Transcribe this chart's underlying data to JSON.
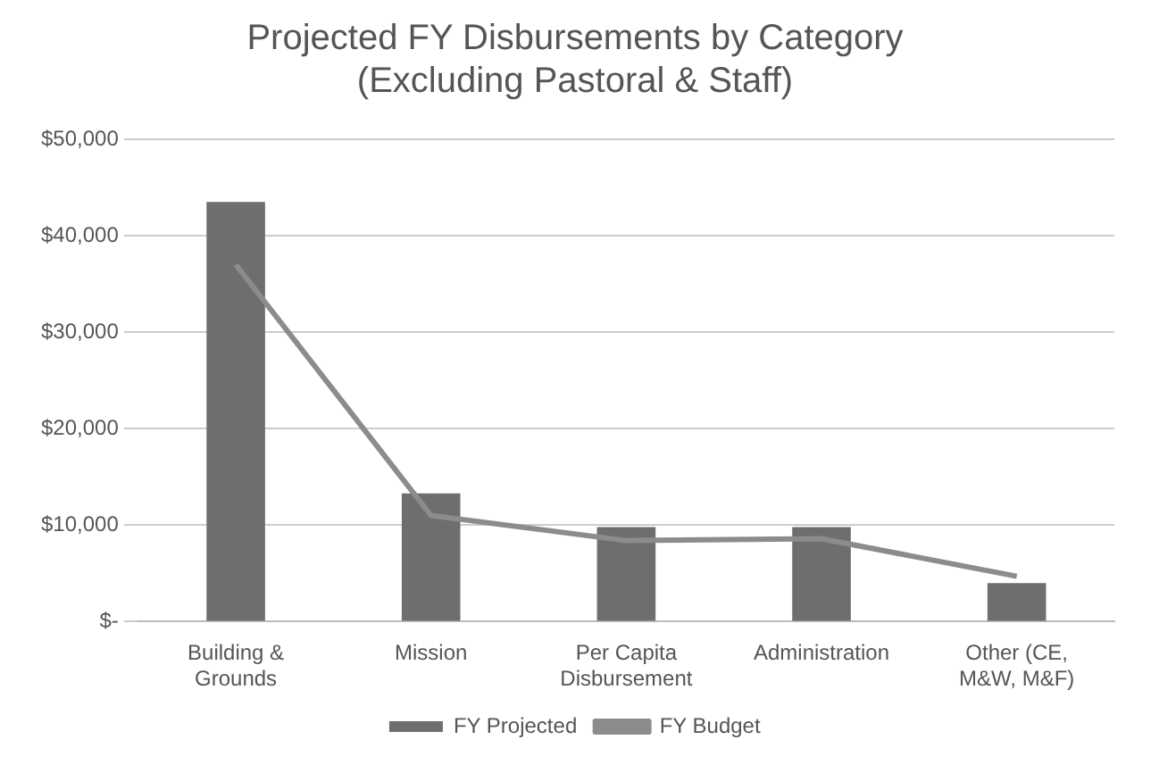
{
  "chart_data": {
    "type": "bar",
    "title": [
      "Projected FY Disbursements by Category",
      "(Excluding Pastoral & Staff)"
    ],
    "categories": [
      [
        "Building &",
        "Grounds"
      ],
      "Mission",
      [
        "Per Capita",
        "Disbursement"
      ],
      "Administration",
      [
        "Other (CE,",
        "M&W, M&F)"
      ]
    ],
    "series": [
      {
        "name": "FY Projected",
        "color": "#6e6e6e",
        "values": [
          43500,
          13300,
          9800,
          9800,
          4000
        ]
      },
      {
        "name": "FY Budget",
        "type": "line",
        "color": "#8c8c8c",
        "values": [
          37000,
          11000,
          8400,
          8600,
          4700
        ]
      }
    ],
    "ylim": [
      0,
      50000
    ],
    "yticks": [
      {
        "value": 0,
        "label": "$-"
      },
      {
        "value": 10000,
        "label": "$10,000"
      },
      {
        "value": 20000,
        "label": "$20,000"
      },
      {
        "value": 30000,
        "label": "$30,000"
      },
      {
        "value": 40000,
        "label": "$40,000"
      },
      {
        "value": 50000,
        "label": "$50,000"
      }
    ],
    "grid": "y",
    "legend": "bottom",
    "marker": "none"
  }
}
